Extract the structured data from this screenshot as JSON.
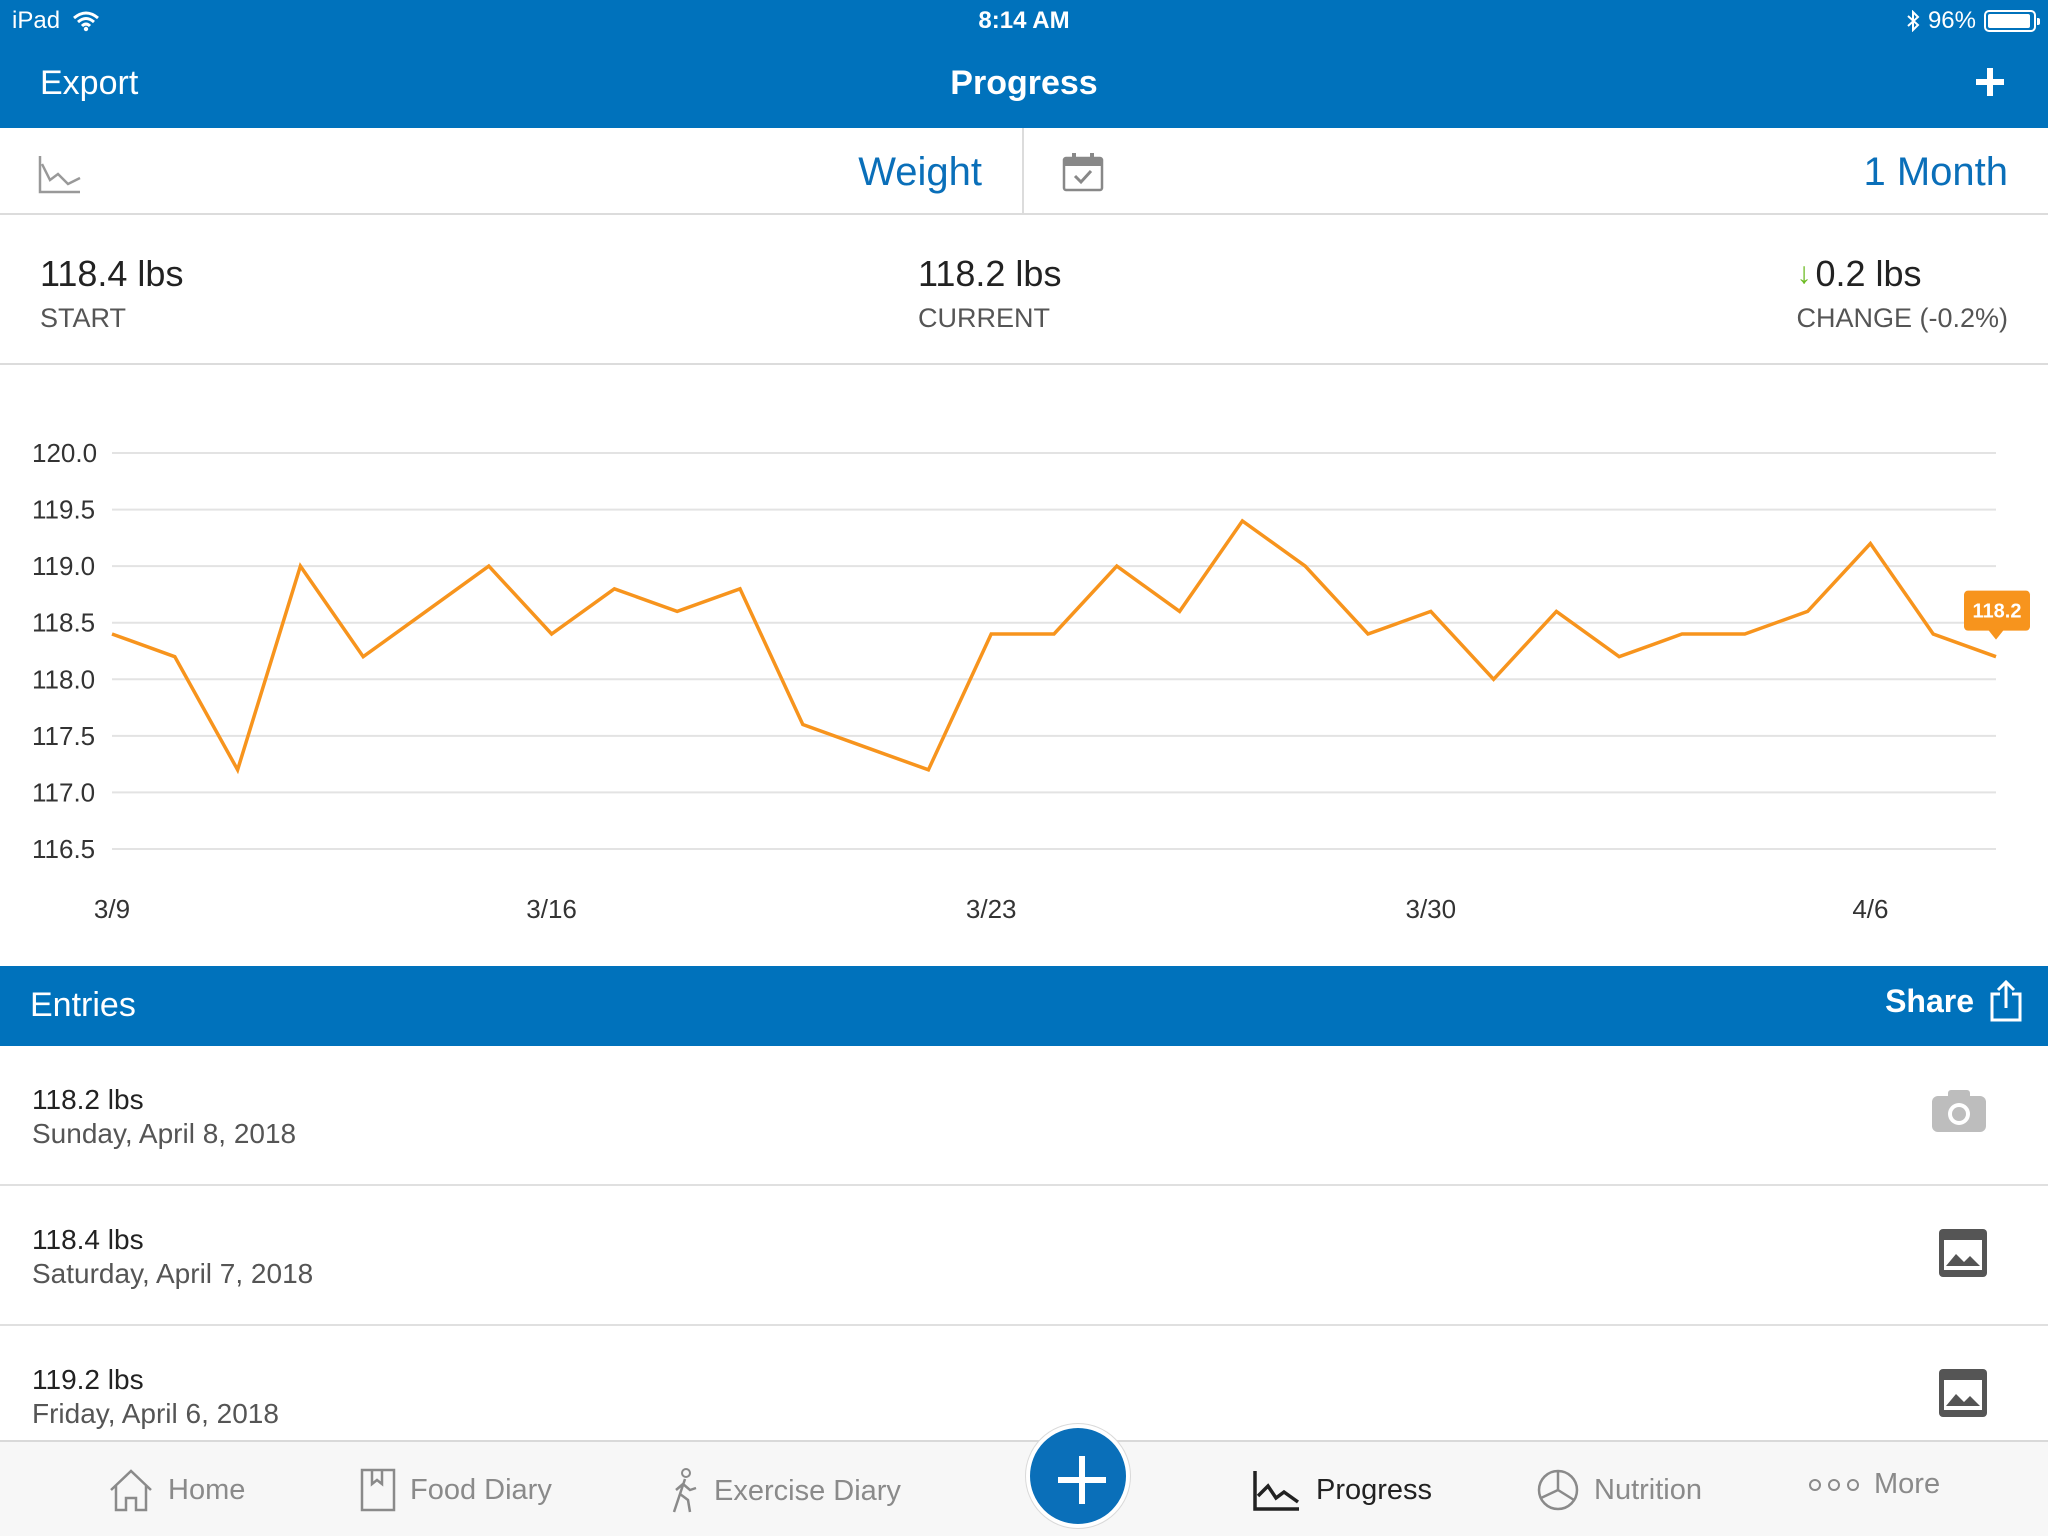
{
  "status_bar": {
    "device": "iPad",
    "time": "8:14 AM",
    "battery": "96%",
    "battery_level": 0.96
  },
  "nav": {
    "export_label": "Export",
    "title": "Progress",
    "add_icon": "plus-icon"
  },
  "selector": {
    "metric": "Weight",
    "period": "1 Month",
    "chart_icon": "line-chart-icon",
    "calendar_icon": "calendar-icon"
  },
  "summary": {
    "start_value": "118.4 lbs",
    "start_label": "START",
    "current_value": "118.2 lbs",
    "current_label": "CURRENT",
    "change_value": "0.2 lbs",
    "change_label": "CHANGE (-0.2%)",
    "change_arrow": "↓"
  },
  "chart_data": {
    "type": "line",
    "x_ticks": [
      "3/9",
      "3/16",
      "3/23",
      "3/30",
      "4/6"
    ],
    "y_ticks": [
      "120.0",
      "119.5",
      "119.0",
      "118.5",
      "118.0",
      "117.5",
      "117.0",
      "116.5"
    ],
    "ylim": [
      116.5,
      120.0
    ],
    "x_start": "3/9",
    "x_end": "4/8",
    "series": [
      {
        "color": "#f7941d",
        "values": [
          118.4,
          118.2,
          117.2,
          119.0,
          118.2,
          118.6,
          119.0,
          118.4,
          118.8,
          118.6,
          118.8,
          117.6,
          117.4,
          117.2,
          118.4,
          118.4,
          119.0,
          118.6,
          119.4,
          119.0,
          118.4,
          118.6,
          118.0,
          118.6,
          118.2,
          118.4,
          118.4,
          118.6,
          119.2,
          118.4,
          118.2
        ]
      }
    ],
    "last_label": "118.2",
    "grid": true
  },
  "entries": {
    "title": "Entries",
    "share_label": "Share",
    "items": [
      {
        "weight": "118.2 lbs",
        "date": "Sunday, April 8, 2018",
        "icon": "camera-icon"
      },
      {
        "weight": "118.4 lbs",
        "date": "Saturday, April 7, 2018",
        "icon": "photo-icon"
      },
      {
        "weight": "119.2 lbs",
        "date": "Friday, April 6, 2018",
        "icon": "photo-icon"
      }
    ]
  },
  "tabs": [
    {
      "label": "Home",
      "icon": "home-icon"
    },
    {
      "label": "Food Diary",
      "icon": "book-icon"
    },
    {
      "label": "Exercise Diary",
      "icon": "walking-icon"
    },
    {
      "label": "Progress",
      "icon": "progress-chart-icon",
      "active": true
    },
    {
      "label": "Nutrition",
      "icon": "pie-chart-icon"
    },
    {
      "label": "More",
      "icon": "more-dots-icon"
    }
  ],
  "colors": {
    "primary": "#0072bc",
    "accent": "#f7941d",
    "link": "#0a6fb9",
    "down_arrow": "#6cbb23"
  }
}
